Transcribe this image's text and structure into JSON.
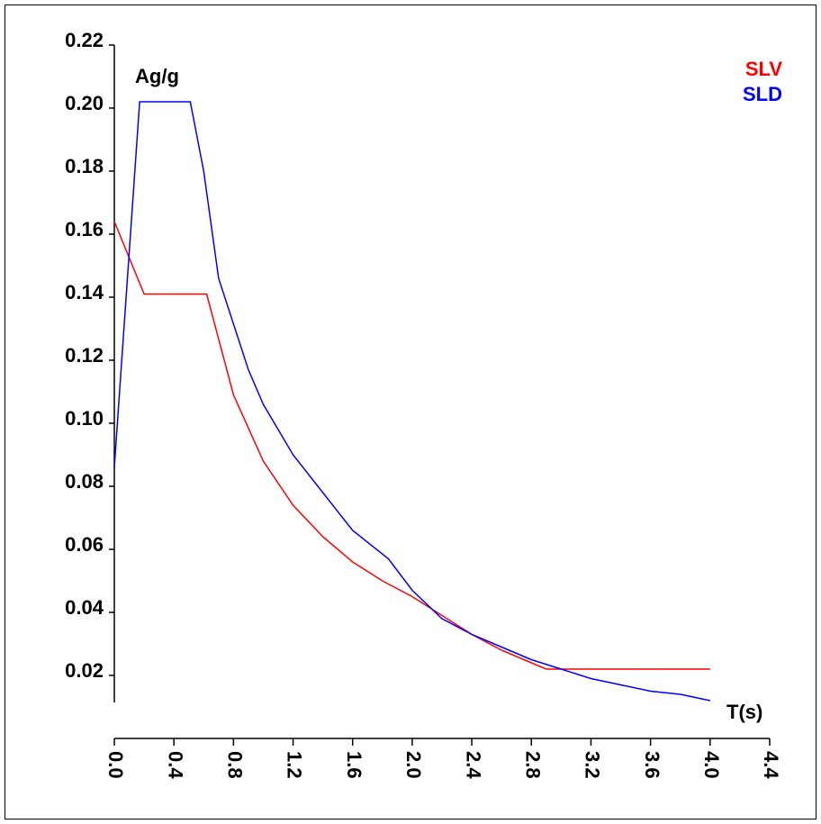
{
  "chart_data": {
    "type": "line",
    "y_label": "Ag/g",
    "x_label": "T(s)",
    "xlim": [
      0,
      4.4
    ],
    "ylim": [
      0,
      0.22
    ],
    "xticks": [
      {
        "value": 0,
        "label": "0.0"
      },
      0.4,
      0.8,
      1.2,
      1.6,
      {
        "value": 2,
        "label": "2.0"
      },
      2.4,
      2.8,
      3.2,
      3.6,
      {
        "value": 4,
        "label": "4.0"
      },
      4.4
    ],
    "yticks": [
      {
        "value": 0.02,
        "label": "0.02"
      },
      {
        "value": 0.04,
        "label": "0.04"
      },
      {
        "value": 0.06,
        "label": "0.06"
      },
      {
        "value": 0.08,
        "label": "0.08"
      },
      {
        "value": 0.1,
        "label": "0.10"
      },
      {
        "value": 0.12,
        "label": "0.12"
      },
      {
        "value": 0.14,
        "label": "0.14"
      },
      {
        "value": 0.16,
        "label": "0.16"
      },
      {
        "value": 0.18,
        "label": "0.18"
      },
      {
        "value": 0.2,
        "label": "0.20"
      },
      {
        "value": 0.22,
        "label": "0.22"
      }
    ],
    "series": [
      {
        "name": "SLV",
        "color": "#ff0000",
        "x": [
          0,
          0.2,
          0.62,
          0.8,
          1.0,
          1.2,
          1.4,
          1.6,
          1.8,
          2.0,
          2.1,
          2.4,
          2.6,
          2.8,
          2.9,
          4.0
        ],
        "values": [
          0.164,
          0.141,
          0.141,
          0.109,
          0.088,
          0.074,
          0.064,
          0.056,
          0.05,
          0.045,
          0.042,
          0.033,
          0.028,
          0.024,
          0.022,
          0.022
        ]
      },
      {
        "name": "SLD",
        "color": "#0000ff",
        "x": [
          0,
          0.17,
          0.51,
          0.6,
          0.7,
          0.9,
          1.0,
          1.2,
          1.4,
          1.6,
          1.84,
          2.0,
          2.2,
          2.4,
          2.6,
          2.8,
          3.0,
          3.2,
          3.4,
          3.6,
          3.8,
          4.0
        ],
        "values": [
          0.086,
          0.202,
          0.202,
          0.18,
          0.146,
          0.117,
          0.106,
          0.09,
          0.078,
          0.066,
          0.057,
          0.047,
          0.038,
          0.033,
          0.029,
          0.025,
          0.022,
          0.019,
          0.017,
          0.015,
          0.014,
          0.012
        ]
      }
    ]
  }
}
